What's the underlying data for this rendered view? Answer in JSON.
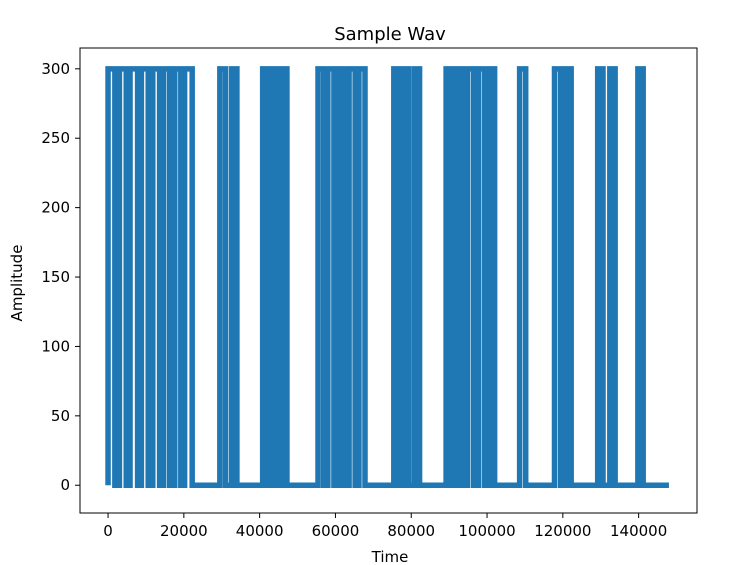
{
  "chart_data": {
    "type": "line",
    "title": "Sample Wav",
    "xlabel": "Time",
    "ylabel": "Amplitude",
    "xlim": [
      -7400,
      155400
    ],
    "ylim": [
      -20,
      315
    ],
    "xticks": [
      0,
      20000,
      40000,
      60000,
      80000,
      100000,
      120000,
      140000
    ],
    "yticks": [
      0,
      50,
      100,
      150,
      200,
      250,
      300
    ],
    "grid": false,
    "legend": "none",
    "series_color": "#1f77b4",
    "signal": {
      "low_value": 0,
      "high_value": 300,
      "x_end": 148000,
      "pulses": [
        [
          0,
          1800
        ],
        [
          3000,
          4800
        ],
        [
          5800,
          7800
        ],
        [
          8800,
          10600
        ],
        [
          11800,
          13600
        ],
        [
          14600,
          16200
        ],
        [
          17600,
          19200
        ],
        [
          20200,
          22200
        ],
        [
          29500,
          31000
        ],
        [
          32600,
          34000
        ],
        [
          40800,
          42200
        ],
        [
          43400,
          44800
        ],
        [
          45800,
          47200
        ],
        [
          55400,
          56900
        ],
        [
          58000,
          59600
        ],
        [
          60800,
          62200
        ],
        [
          63600,
          65200
        ],
        [
          66200,
          67800
        ],
        [
          75400,
          76800
        ],
        [
          78000,
          79300
        ],
        [
          80800,
          82200
        ],
        [
          89200,
          90600
        ],
        [
          92000,
          93400
        ],
        [
          94800,
          96400
        ],
        [
          97800,
          99400
        ],
        [
          100600,
          102000
        ],
        [
          108600,
          110200
        ],
        [
          117800,
          119400
        ],
        [
          120800,
          122200
        ],
        [
          129200,
          130600
        ],
        [
          132400,
          133800
        ],
        [
          139800,
          141200
        ]
      ]
    }
  }
}
